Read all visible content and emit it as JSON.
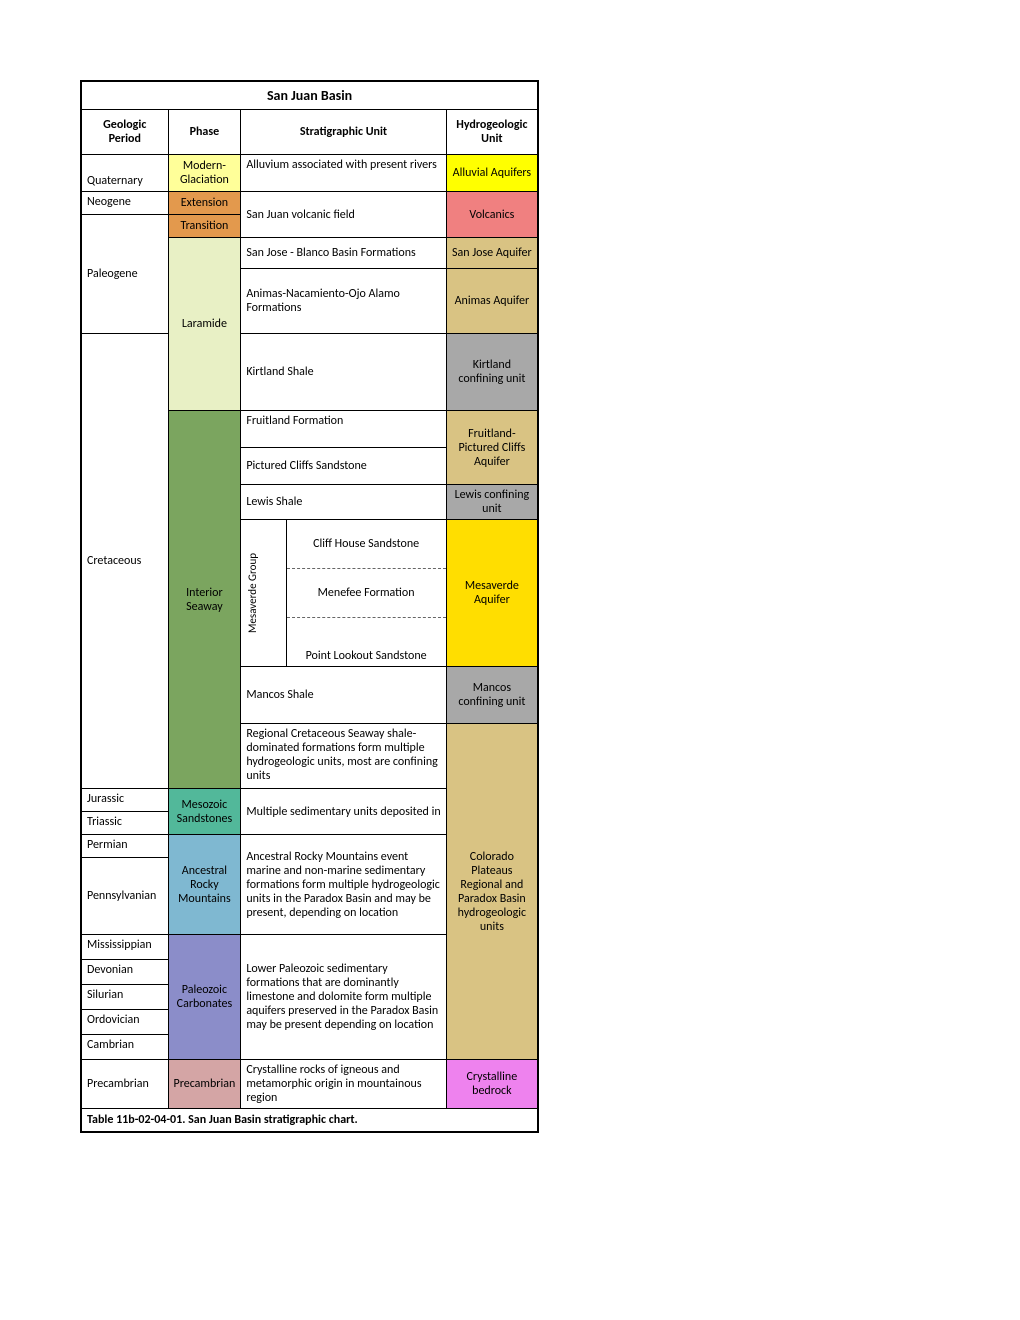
{
  "title": "San Juan Basin",
  "headers": {
    "col1": "Geologic Period",
    "col2": "Phase",
    "col3": "Stratigraphic Unit",
    "col4": "Hydrogeologic Unit"
  },
  "periods": {
    "quaternary": "Quaternary",
    "neogene": "Neogene",
    "paleogene": "Paleogene",
    "cretaceous": "Cretaceous",
    "jurassic": "Jurassic",
    "triassic": "Triassic",
    "permian": "Permian",
    "pennsylvanian": "Pennsylvanian",
    "mississippian": "Mississippian",
    "devonian": "Devonian",
    "silurian": "Silurian",
    "ordovician": "Ordovician",
    "cambrian": "Cambrian",
    "precambrian": "Precambrian"
  },
  "phases": {
    "modern_glaciation": "Modern-Glaciation",
    "extension": "Extension",
    "transition": "Transition",
    "laramide": "Laramide",
    "interior_seaway": "Interior Seaway",
    "mesozoic_sandstones": "Mesozoic Sandstones",
    "ancestral_rocky_mountains": "Ancestral Rocky Mountains",
    "paleozoic_carbonates": "Paleozoic Carbonates",
    "precambrian": "Precambrian"
  },
  "strat": {
    "alluvium": "Alluvium associated with present rivers",
    "volcanic": "San Juan volcanic field",
    "san_jose": "San Jose - Blanco Basin Formations",
    "animas": "Animas-Nacamiento-Ojo Alamo Formations",
    "kirtland": "Kirtland Shale",
    "fruitland": "Fruitland Formation",
    "pictured": "Pictured Cliffs Sandstone",
    "lewis": "Lewis Shale",
    "mesaverde_group": "Mesaverde Group",
    "cliff_house": "Cliff House Sandstone",
    "menefee": "Menefee Formation",
    "point_lookout": "Point Lookout Sandstone",
    "mancos": "Mancos Shale",
    "regional_cret": "Regional Cretaceous Seaway shale-dominated formations form multiple hydrogeologic units, most are confining units",
    "multiple_sed": "Multiple sedimentary units deposited in",
    "ancestral_desc": "Ancestral Rocky Mountains event marine and non-marine sedimentary formations form multiple hydrogeologic units in the Paradox Basin and may be present, depending on location",
    "lower_paleozoic": "Lower Paleozoic sedimentary formations that are dominantly limestone and dolomite form multiple aquifers preserved in the Paradox Basin may be present depending on location",
    "crystalline": "Crystalline rocks of igneous and metamorphic origin in mountainous region"
  },
  "hydro": {
    "alluvial": "Alluvial Aquifers",
    "volcanics": "Volcanics",
    "san_jose_aq": "San Jose Aquifer",
    "animas_aq": "Animas Aquifer",
    "kirtland_cu": "Kirtland confining unit",
    "fruitland_aq": "Fruitland-Pictured Cliffs Aquifer",
    "lewis_cu": "Lewis confining unit",
    "mesaverde_aq": "Mesaverde Aquifer",
    "mancos_cu": "Mancos confining unit",
    "colorado_plateaus": "Colorado Plateaus Regional and Paradox Basin hydrogeologic units",
    "crystalline_bedrock": "Crystalline bedrock"
  },
  "caption": "Table 11b-02-04-01. San Juan Basin stratigraphic chart.",
  "colors": {
    "modern_glaciation": "#ffff99",
    "extension": "#e3994d",
    "transition": "#e3994d",
    "laramide": "#e8f0c5",
    "interior_seaway": "#7ba55f",
    "mesozoic_sandstones": "#52b89a",
    "ancestral_rocky": "#7fb8d1",
    "paleozoic_carb": "#8b8dc9",
    "precambrian_phase": "#d4a5a5",
    "alluvial_aq": "#ffff00",
    "volcanics": "#f08080",
    "san_jose_aq": "#d9c383",
    "animas_aq": "#d9c383",
    "kirtland_cu": "#a8a8a8",
    "fruitland_aq": "#d9c383",
    "lewis_cu": "#a8a8a8",
    "mesaverde_aq": "#ffde00",
    "mancos_cu": "#a8a8a8",
    "colorado_plateaus": "#d9c383",
    "crystalline": "#ee82ee"
  },
  "col_widths": {
    "period": 87,
    "phase": 70,
    "strat": 185,
    "hydro": 92
  }
}
